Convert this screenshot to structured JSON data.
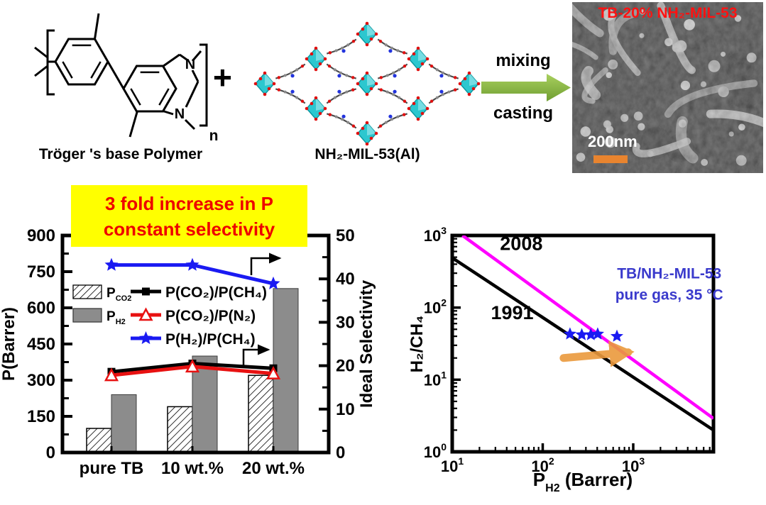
{
  "figure": {
    "reaction": {
      "polymer_label": "Tröger 's base Polymer",
      "plus_sign": "+",
      "mof_label": "NH₂-MIL-53(Al)",
      "process_arrow": {
        "top_label": "mixing",
        "bottom_label": "casting",
        "color": "#8bb53f"
      },
      "sem": {
        "title": "TB-20% NH₂-MIL-53",
        "title_color": "#ff1212",
        "scale_label": "200nm",
        "scale_text_color": "#ffffff",
        "scalebar_color": "#e8842f"
      }
    },
    "banner": {
      "line1": "3 fold increase in P",
      "line2": "constant selectivity",
      "bg_color": "#ffff00",
      "text_color": "#ee0000"
    }
  },
  "chart_data": [
    {
      "id": "permeability-selectivity",
      "type": "bar",
      "categories": [
        "pure TB",
        "10 wt.%",
        "20 wt.%"
      ],
      "bar_series": [
        {
          "name": "P_CO2",
          "label_base": "P",
          "label_sub": "CO2",
          "style": "hatched",
          "color": "#ffffff",
          "values": [
            100,
            190,
            320
          ]
        },
        {
          "name": "P_H2",
          "label_base": "P",
          "label_sub": "H2",
          "style": "gray",
          "color": "#8c8c8c",
          "values": [
            240,
            400,
            680
          ]
        }
      ],
      "line_series": [
        {
          "name": "P(CO₂)/P(CH₄)",
          "color": "#000000",
          "marker": "square",
          "axis": "right",
          "values": [
            18.6,
            20.5,
            19.4
          ]
        },
        {
          "name": "P(CO₂)/P(N₂)",
          "color": "#e81111",
          "marker": "triangle-open",
          "axis": "right",
          "values": [
            17.8,
            19.8,
            18.2
          ]
        },
        {
          "name": "P(H₂)/P(CH₄)",
          "color": "#1a1af2",
          "marker": "star",
          "axis": "right",
          "values": [
            43.2,
            43.2,
            38.9
          ]
        }
      ],
      "left_axis": {
        "label": "P(Barrer)",
        "min": 0,
        "max": 900,
        "major_ticks": [
          0,
          150,
          300,
          450,
          600,
          750,
          900
        ],
        "minor_step": 75
      },
      "right_axis": {
        "label": "Ideal Selectivity",
        "min": 0,
        "max": 50,
        "major_ticks": [
          0,
          10,
          20,
          30,
          40,
          50
        ],
        "minor_step": 5
      }
    },
    {
      "id": "robeson-upper-bound",
      "type": "scatter",
      "xlabel": {
        "base": "P",
        "sub": "H2",
        "rest": " (Barrer)"
      },
      "ylabel": "H₂/CH₄",
      "xscale": "log",
      "yscale": "log",
      "xlim": [
        10,
        7700
      ],
      "ylim": [
        1,
        1000
      ],
      "xtick_exponents": [
        1,
        2,
        3
      ],
      "ytick_exponents": [
        0,
        1,
        2,
        3
      ],
      "upper_bounds": [
        {
          "name": "1991",
          "color": "#000000",
          "points": [
            [
              10,
              490
            ],
            [
              7700,
              2.0
            ]
          ],
          "label_at": [
            46,
            69
          ]
        },
        {
          "name": "2008",
          "color": "#ff00ff",
          "points": [
            [
              13,
              1000
            ],
            [
              7700,
              2.9
            ]
          ],
          "label_at": [
            58,
            630
          ]
        }
      ],
      "data_points": {
        "name": "TB/NH₂-MIL-53 membranes",
        "marker": "star",
        "color": "#1a1af2",
        "points": [
          [
            200,
            43
          ],
          [
            270,
            42
          ],
          [
            340,
            42
          ],
          [
            405,
            43
          ],
          [
            660,
            40
          ]
        ]
      },
      "annotation": {
        "line1": "TB/NH₂-MIL-53",
        "line2": "pure gas, 35 °C",
        "color": "#3a3acc",
        "at": [
          2500,
          255
        ]
      },
      "trend_arrow": {
        "color": "#eb9a3d",
        "from": [
          170,
          20
        ],
        "to": [
          880,
          24
        ]
      }
    }
  ]
}
